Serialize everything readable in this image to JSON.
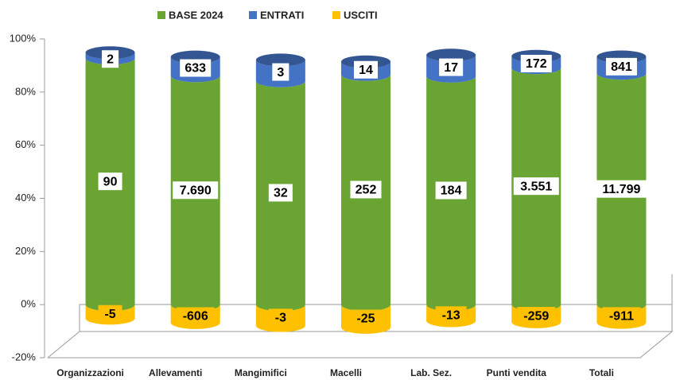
{
  "chart_data": {
    "type": "bar",
    "stacking": "percent",
    "categories": [
      "Organizzazioni",
      "Allevamenti",
      "Mangimifici",
      "Macelli",
      "Lab. Sez.",
      "Punti vendita",
      "Totali"
    ],
    "series": [
      {
        "name": "BASE 2024",
        "color": "#6aa533",
        "values": [
          90,
          7690,
          32,
          252,
          184,
          3551,
          11799
        ],
        "value_labels": [
          "90",
          "7.690",
          "32",
          "252",
          "184",
          "3.551",
          "11.799"
        ]
      },
      {
        "name": "ENTRATI",
        "color": "#4472c4",
        "values": [
          2,
          633,
          3,
          14,
          17,
          172,
          841
        ]
      },
      {
        "name": "USCITI",
        "color": "#ffc000",
        "values": [
          -5,
          -606,
          -3,
          -25,
          -13,
          -259,
          -911
        ]
      }
    ],
    "ylim": [
      -20,
      100
    ],
    "yticks": [
      {
        "value": -20,
        "label": "-20%"
      },
      {
        "value": 0,
        "label": "0%"
      },
      {
        "value": 20,
        "label": "20%"
      },
      {
        "value": 40,
        "label": "40%"
      },
      {
        "value": 60,
        "label": "60%"
      },
      {
        "value": 80,
        "label": "80%"
      },
      {
        "value": 100,
        "label": "100%"
      }
    ]
  }
}
